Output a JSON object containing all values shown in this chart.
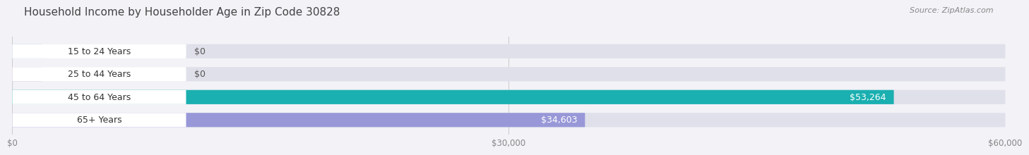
{
  "title": "Household Income by Householder Age in Zip Code 30828",
  "source": "Source: ZipAtlas.com",
  "categories": [
    "15 to 24 Years",
    "25 to 44 Years",
    "45 to 64 Years",
    "65+ Years"
  ],
  "values": [
    0,
    0,
    53264,
    34603
  ],
  "bar_colors": [
    "#a8c8e8",
    "#c8a8c8",
    "#1aafb0",
    "#9898d8"
  ],
  "background_color": "#f2f2f7",
  "bar_bg_color": "#e0e0ea",
  "white_label_bg": "#ffffff",
  "xlim": [
    0,
    60000
  ],
  "xticks": [
    0,
    30000,
    60000
  ],
  "xtick_labels": [
    "$0",
    "$30,000",
    "$60,000"
  ],
  "title_fontsize": 11,
  "source_fontsize": 8,
  "label_fontsize": 9,
  "value_fontsize": 9,
  "bar_height": 0.62
}
